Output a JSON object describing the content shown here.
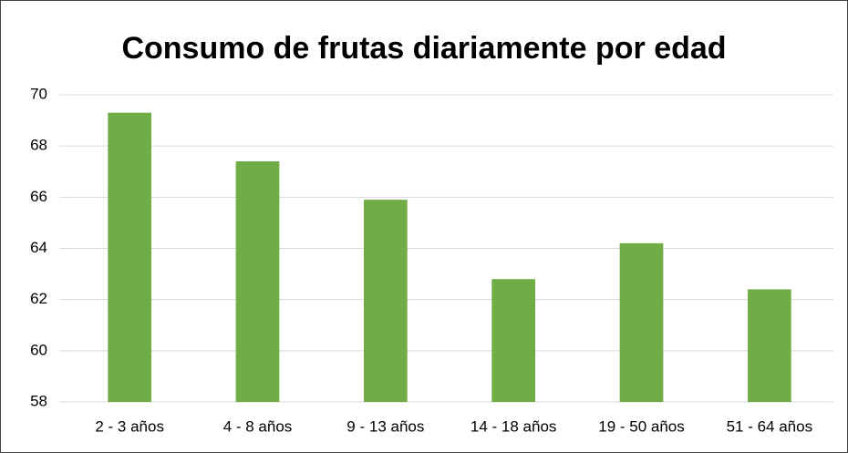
{
  "chart_data": {
    "type": "bar",
    "title": "Consumo de frutas diariamente por edad",
    "categories": [
      "2 - 3 años",
      "4 - 8 años",
      "9 - 13 años",
      "14 - 18 años",
      "19 - 50 años",
      "51 - 64 años"
    ],
    "values": [
      69.3,
      67.4,
      65.9,
      62.8,
      64.2,
      62.4
    ],
    "color": "#70ad47",
    "ylim": [
      58,
      70
    ],
    "yticks": [
      58,
      60,
      62,
      64,
      66,
      68,
      70
    ],
    "grid": true
  }
}
